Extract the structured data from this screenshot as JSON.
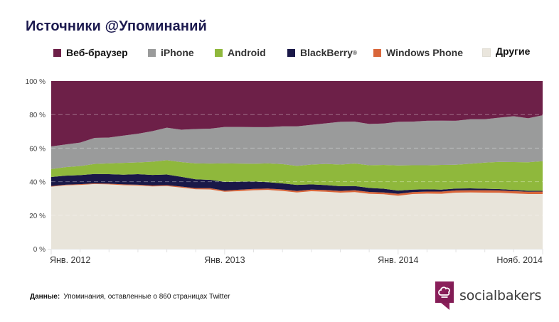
{
  "header": {
    "title": "Источники @Упоминаний"
  },
  "legend": [
    {
      "key": "web",
      "label": "Веб-браузер",
      "color": "#6d2048"
    },
    {
      "key": "iphone",
      "label": "iPhone",
      "color": "#9a9b9b"
    },
    {
      "key": "android",
      "label": "Android",
      "color": "#8fb83c"
    },
    {
      "key": "blackberry",
      "label": "BlackBerry",
      "sup": "®",
      "color": "#1a1848"
    },
    {
      "key": "windows",
      "label": "Windows Phone",
      "color": "#d9663a"
    },
    {
      "key": "others",
      "label": "Другие",
      "color": "#e8e4da"
    }
  ],
  "footer": {
    "source_label": "Данные:",
    "source_text": "Упоминания, оставленные о 860 страницах Twitter"
  },
  "brand": {
    "name": "socialbakers",
    "color": "#8a1f5a"
  },
  "chart_data": {
    "type": "area",
    "stacked": true,
    "title": "Источники @Упоминаний",
    "xlabel": "",
    "ylabel": "",
    "ylim": [
      0,
      100
    ],
    "yticks": [
      0,
      20,
      40,
      60,
      80,
      100
    ],
    "ytick_labels": [
      "0 %",
      "20 %",
      "40 %",
      "60 %",
      "80 %",
      "100 %"
    ],
    "grid": true,
    "legend_position": "top",
    "x": [
      "2012-01",
      "2012-02",
      "2012-03",
      "2012-04",
      "2012-05",
      "2012-06",
      "2012-07",
      "2012-08",
      "2012-09",
      "2012-10",
      "2012-11",
      "2012-12",
      "2013-01",
      "2013-02",
      "2013-03",
      "2013-04",
      "2013-05",
      "2013-06",
      "2013-07",
      "2013-08",
      "2013-09",
      "2013-10",
      "2013-11",
      "2013-12",
      "2014-01",
      "2014-02",
      "2014-03",
      "2014-04",
      "2014-05",
      "2014-06",
      "2014-07",
      "2014-08",
      "2014-09",
      "2014-10",
      "2014-11"
    ],
    "xtick_labels": [
      {
        "index": 0,
        "label": "Янв. 2012"
      },
      {
        "index": 12,
        "label": "Янв. 2013"
      },
      {
        "index": 24,
        "label": "Янв. 2014"
      },
      {
        "index": 34,
        "label": "Нояб. 2014"
      }
    ],
    "series": [
      {
        "name": "Другие",
        "key": "others",
        "values": [
          37.0,
          37.8,
          38.1,
          38.6,
          38.4,
          37.9,
          37.7,
          37.2,
          37.4,
          36.5,
          35.5,
          35.4,
          34.0,
          34.4,
          34.9,
          35.1,
          34.5,
          33.6,
          34.3,
          34.0,
          33.5,
          33.8,
          32.8,
          32.5,
          31.6,
          32.6,
          32.9,
          32.8,
          33.5,
          33.6,
          33.5,
          33.4,
          33.0,
          32.6,
          32.6
        ]
      },
      {
        "name": "Windows Phone",
        "key": "windows",
        "values": [
          0.4,
          0.4,
          0.4,
          0.4,
          0.4,
          0.5,
          0.5,
          0.5,
          0.5,
          0.6,
          0.6,
          0.7,
          0.7,
          0.8,
          0.8,
          0.8,
          0.9,
          0.9,
          1.0,
          1.0,
          1.0,
          1.1,
          1.1,
          1.1,
          1.2,
          1.2,
          1.2,
          1.3,
          1.3,
          1.3,
          1.4,
          1.4,
          1.4,
          1.4,
          1.5
        ]
      },
      {
        "name": "BlackBerry",
        "key": "blackberry",
        "values": [
          5.4,
          5.4,
          5.4,
          5.6,
          5.7,
          5.8,
          6.3,
          6.3,
          6.4,
          5.8,
          5.3,
          5.0,
          5.2,
          4.8,
          4.4,
          3.8,
          3.6,
          3.6,
          3.1,
          3.0,
          2.8,
          2.5,
          2.4,
          2.2,
          1.9,
          1.5,
          1.4,
          1.2,
          1.1,
          1.1,
          0.9,
          0.8,
          0.7,
          0.6,
          0.5
        ]
      },
      {
        "name": "Android",
        "key": "android",
        "values": [
          4.7,
          5.1,
          5.4,
          6.0,
          6.4,
          7.0,
          7.0,
          7.9,
          8.5,
          8.8,
          9.5,
          9.7,
          11.0,
          10.8,
          10.6,
          11.2,
          11.5,
          11.3,
          11.8,
          12.6,
          12.9,
          13.4,
          13.5,
          14.2,
          15.0,
          14.5,
          14.3,
          14.7,
          14.2,
          14.7,
          15.6,
          16.2,
          16.6,
          17.0,
          17.6
        ]
      },
      {
        "name": "iPhone",
        "key": "iphone",
        "values": [
          13.5,
          13.5,
          14.0,
          15.5,
          15.4,
          16.3,
          17.1,
          18.2,
          19.4,
          19.3,
          20.5,
          20.8,
          21.7,
          21.8,
          21.8,
          21.6,
          22.5,
          23.6,
          23.7,
          24.2,
          25.5,
          25.0,
          24.6,
          24.7,
          26.0,
          26.0,
          26.5,
          26.4,
          26.2,
          26.5,
          25.8,
          26.4,
          27.3,
          26.2,
          27.4
        ]
      },
      {
        "name": "Веб-браузер",
        "key": "web",
        "values": [
          39.0,
          37.8,
          36.7,
          33.9,
          33.7,
          32.5,
          31.4,
          29.9,
          27.8,
          29.0,
          28.6,
          28.4,
          27.4,
          27.4,
          27.5,
          27.5,
          27.0,
          27.0,
          26.1,
          25.2,
          26.3,
          26.2,
          25.6,
          25.3,
          24.3,
          24.2,
          23.7,
          23.6,
          23.7,
          22.8,
          22.8,
          21.8,
          21.0,
          22.2,
          20.4
        ]
      }
    ]
  }
}
